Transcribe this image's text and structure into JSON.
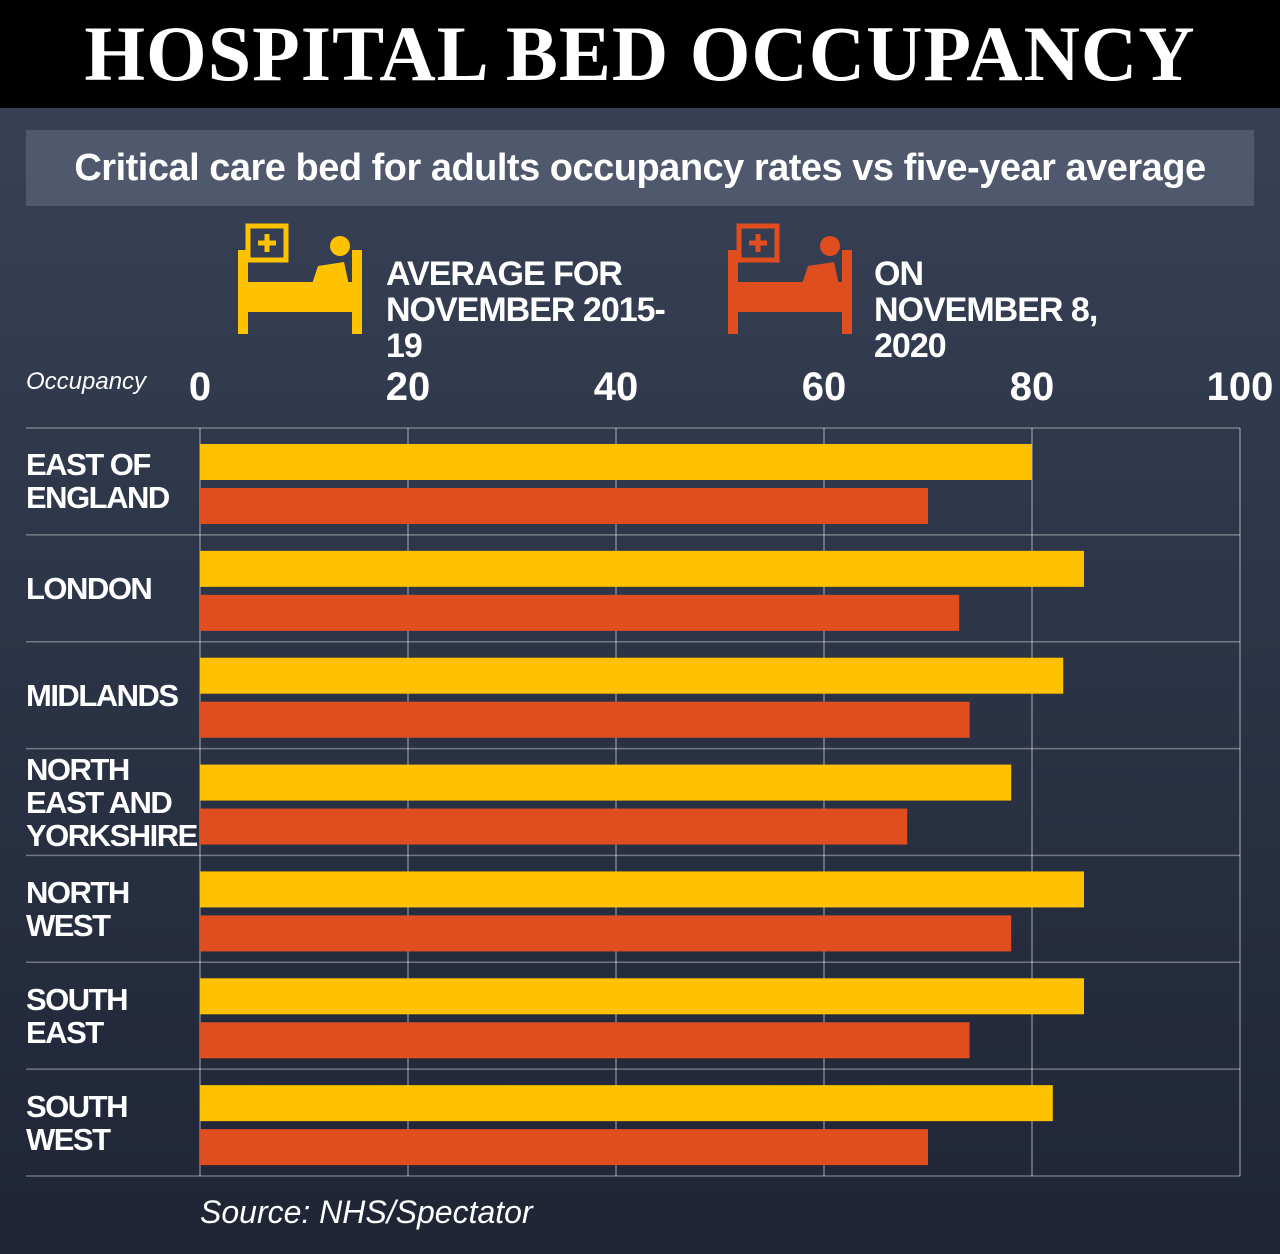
{
  "chart_data": {
    "type": "bar",
    "title": "HOSPITAL BED OCCUPANCY",
    "subtitle": "Critical care bed for adults occupancy rates vs five-year average",
    "x_label": "Occupancy",
    "source": "Source: NHS/Spectator",
    "categories": [
      "EAST OF ENGLAND",
      "LONDON",
      "MIDLANDS",
      "NORTH EAST AND YORKSHIRE",
      "NORTH WEST",
      "SOUTH EAST",
      "SOUTH WEST"
    ],
    "series": [
      {
        "name": "AVERAGE FOR NOVEMBER 2015-19",
        "color": "#ffc200",
        "values": [
          80,
          85,
          83,
          78,
          85,
          85,
          82
        ]
      },
      {
        "name": "ON NOVEMBER 8, 2020",
        "color": "#e04e1f",
        "values": [
          70,
          73,
          74,
          68,
          78,
          74,
          70
        ]
      }
    ],
    "xlim": [
      0,
      100
    ],
    "xticks": [
      0,
      20,
      40,
      60,
      80,
      100
    ],
    "grid": true
  }
}
